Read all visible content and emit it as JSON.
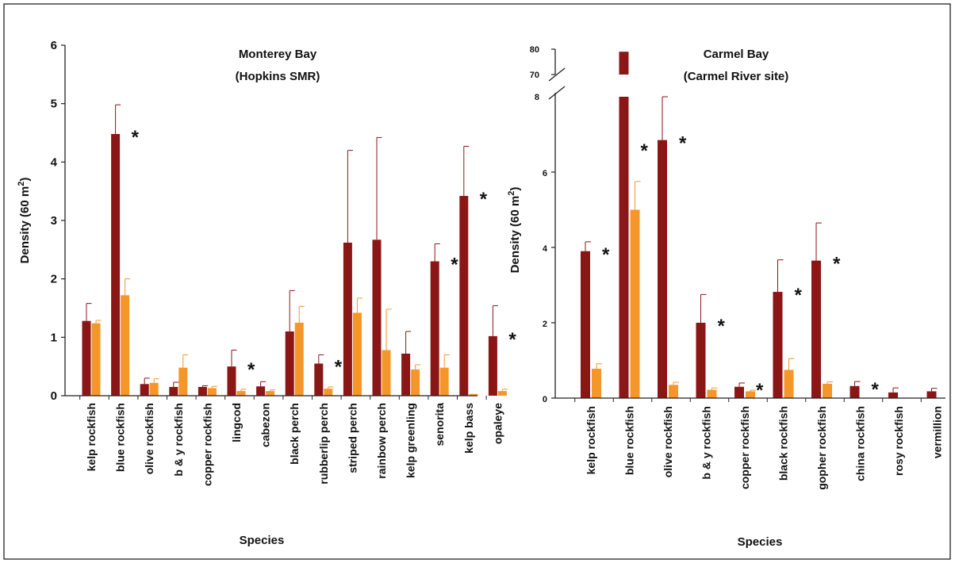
{
  "colors": {
    "series_a": "#8b1616",
    "series_b": "#f5962a",
    "axis": "#222222",
    "frame": "#111111"
  },
  "chart_data": [
    {
      "type": "bar",
      "title": "Monterey Bay",
      "subtitle": "(Hopkins SMR)",
      "ylabel_main": "Density (60 m",
      "ylabel_sup": "2",
      "ylabel_end": ")",
      "xlabel": "Species",
      "ylim": [
        0,
        6
      ],
      "yticks": [
        "0",
        "1",
        "2",
        "3",
        "4",
        "5",
        "6"
      ],
      "categories": [
        "kelp rockfish",
        "blue rockfish",
        "olive rockfish",
        "b & y rockfish",
        "copper rockfish",
        "lingcod",
        "cabezon",
        "black perch",
        "rubberlip perch",
        "striped perch",
        "rainbow perch",
        "kelp greenling",
        "senorita",
        "kelp bass",
        "opaleye"
      ],
      "series": [
        {
          "values": [
            1.28,
            4.48,
            0.2,
            0.15,
            0.15,
            0.5,
            0.16,
            1.1,
            0.55,
            2.62,
            2.67,
            0.72,
            2.3,
            3.42,
            1.02
          ],
          "errors": [
            0.3,
            0.5,
            0.1,
            0.08,
            0.02,
            0.28,
            0.08,
            0.7,
            0.15,
            1.58,
            1.75,
            0.38,
            0.3,
            0.85,
            0.52
          ]
        },
        {
          "values": [
            1.24,
            1.72,
            0.22,
            0.48,
            0.13,
            0.08,
            0.08,
            1.25,
            0.12,
            1.42,
            0.78,
            0.45,
            0.48,
            0.03,
            0.08
          ],
          "errors": [
            0.05,
            0.28,
            0.07,
            0.22,
            0.03,
            0.03,
            0.02,
            0.28,
            0.03,
            0.25,
            0.7,
            0.08,
            0.22,
            0.0,
            0.03
          ]
        }
      ],
      "significance": [
        "",
        "*",
        "",
        "",
        "",
        "*",
        "",
        "",
        "*",
        "",
        "",
        "",
        "*",
        "*",
        "*"
      ],
      "star_mark": "*"
    },
    {
      "type": "bar",
      "title": "Carmel Bay",
      "subtitle": "(Carmel River site)",
      "ylabel_main": "Density (60 m",
      "ylabel_sup": "2",
      "ylabel_end": ")",
      "xlabel": "Species",
      "ylim": [
        0,
        8
      ],
      "axis_break": {
        "upper_ticks": [
          "70",
          "80"
        ],
        "upper_range": [
          70,
          80
        ],
        "break_at": "8"
      },
      "yticks": [
        "0",
        "2",
        "4",
        "6"
      ],
      "categories": [
        "kelp rockfish",
        "blue rockfish",
        "olive rockfish",
        "b & y rockfish",
        "copper rockfish",
        "black rockfish",
        "gopher rockfish",
        "china rockfish",
        "rosy rockfish",
        "vermillion"
      ],
      "series": [
        {
          "values": [
            3.9,
            79,
            6.85,
            2.0,
            0.3,
            2.82,
            3.65,
            0.32,
            0.15,
            0.18
          ],
          "errors": [
            0.25,
            0,
            1.15,
            0.75,
            0.1,
            0.85,
            1.0,
            0.12,
            0.12,
            0.08
          ]
        },
        {
          "values": [
            0.78,
            5.0,
            0.35,
            0.22,
            0.18,
            0.75,
            0.38,
            0.0,
            0.0,
            0.0
          ],
          "errors": [
            0.13,
            0.75,
            0.07,
            0.05,
            0.03,
            0.3,
            0.05,
            0.0,
            0.0,
            0.0
          ]
        }
      ],
      "significance": [
        "*",
        "*",
        "*",
        "*",
        "*",
        "*",
        "*",
        "*",
        "",
        ""
      ],
      "star_mark": "*"
    }
  ]
}
